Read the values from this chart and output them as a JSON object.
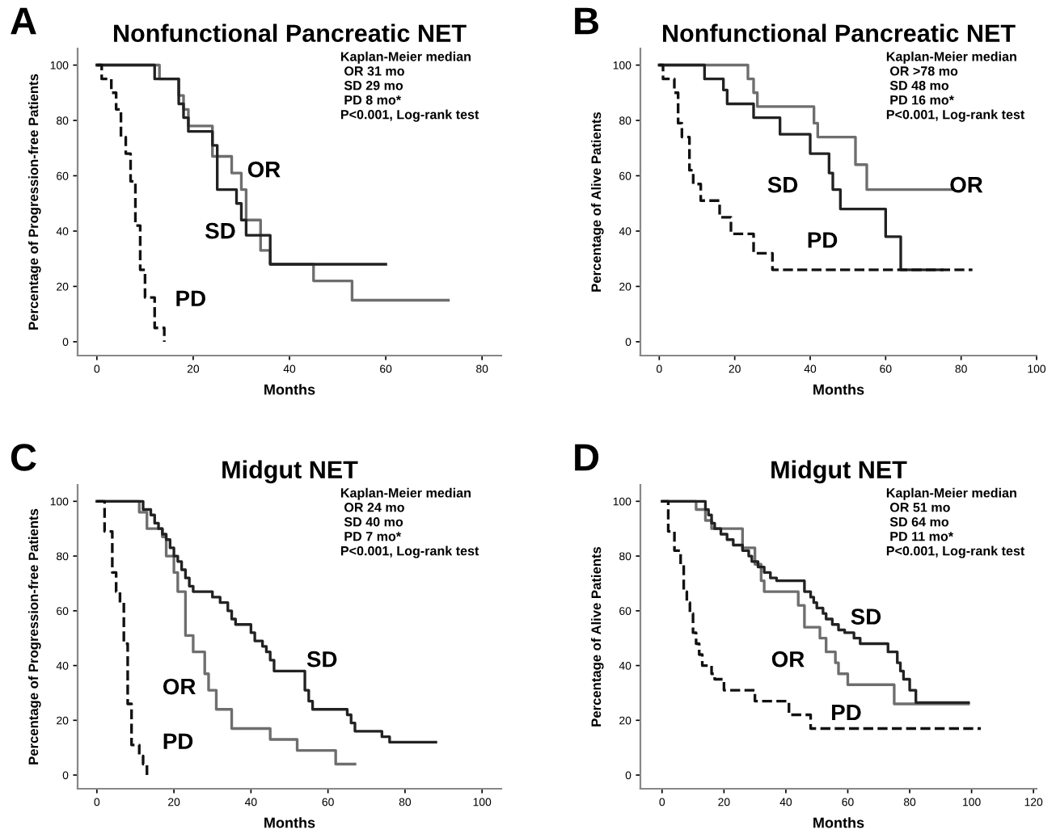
{
  "chart_data": [
    {
      "type": "step",
      "title": "Nonfunctional Pancreatic NET",
      "xlabel": "Months",
      "ylabel": "Percentage of Progression-free Patients",
      "xlim": [
        -4,
        84
      ],
      "xticks": [
        0,
        20,
        40,
        60,
        80
      ],
      "ylim": [
        -5,
        106
      ],
      "yticks": [
        0,
        20,
        40,
        60,
        80,
        100
      ],
      "grid": false,
      "legend": false,
      "annotations": [
        "A",
        "Kaplan-Meier median\n OR 31 mo\n SD 29 mo\n PD 8 mo*\nP<0.001, Log-rank test"
      ],
      "series": [
        {
          "name": "OR",
          "color": "#6e6e6e",
          "line_style": "solid",
          "x": [
            0,
            13,
            17,
            18,
            19,
            24,
            28,
            30,
            31,
            34,
            36,
            45,
            53,
            73
          ],
          "values": [
            100,
            95,
            89,
            84,
            78,
            67,
            61,
            55,
            44,
            33,
            28,
            22,
            15,
            15
          ]
        },
        {
          "name": "SD",
          "color": "#222222",
          "line_style": "solid",
          "x": [
            0,
            12,
            17,
            18,
            19,
            24,
            25,
            29,
            30,
            31,
            36,
            60
          ],
          "values": [
            100,
            95,
            86,
            81,
            76,
            71,
            55,
            50,
            44,
            38.5,
            28,
            28
          ]
        },
        {
          "name": "PD",
          "color": "#111111",
          "line_style": "dashed",
          "x": [
            0,
            1,
            3,
            4,
            5,
            6,
            7,
            8,
            9,
            10,
            12,
            14
          ],
          "values": [
            100,
            95,
            90,
            84,
            74,
            68,
            58,
            42,
            26,
            16,
            5,
            0
          ]
        }
      ]
    },
    {
      "type": "step",
      "title": "Nonfunctional Pancreatic NET",
      "xlabel": "Months",
      "ylabel": "Percentage of Alive Patients",
      "xlim": [
        -5,
        100
      ],
      "xticks": [
        0,
        20,
        40,
        60,
        80,
        100
      ],
      "ylim": [
        -5,
        106
      ],
      "yticks": [
        0,
        20,
        40,
        60,
        80,
        100
      ],
      "grid": false,
      "legend": false,
      "annotations": [
        "B",
        "Kaplan-Meier median\n OR >78 mo\n SD 48 mo\n PD 16 mo*\nP<0.001, Log-rank test"
      ],
      "series": [
        {
          "name": "OR",
          "color": "#6e6e6e",
          "line_style": "solid",
          "x": [
            0,
            23.5,
            25,
            26,
            41,
            42,
            52,
            55,
            78
          ],
          "values": [
            100,
            95,
            90,
            85,
            79,
            74,
            64,
            55,
            55
          ]
        },
        {
          "name": "SD",
          "color": "#222222",
          "line_style": "solid",
          "x": [
            0,
            12,
            17,
            18,
            25,
            32,
            40,
            45,
            46,
            48,
            60,
            64,
            75
          ],
          "values": [
            100,
            95,
            91,
            86,
            81,
            75,
            68,
            61,
            55,
            48,
            38,
            26,
            26
          ]
        },
        {
          "name": "PD",
          "color": "#111111",
          "line_style": "dashed",
          "x": [
            0,
            1,
            4,
            5,
            6,
            8,
            9,
            11,
            16,
            19,
            25,
            30,
            83
          ],
          "values": [
            100,
            95,
            90,
            79,
            74,
            62,
            57,
            51,
            45,
            39,
            32,
            26,
            26
          ]
        }
      ]
    },
    {
      "type": "step",
      "title": "Midgut NET",
      "xlabel": "Months",
      "ylabel": "Percentage of Progression-free Patients",
      "xlim": [
        -5,
        105
      ],
      "xticks": [
        0,
        20,
        40,
        60,
        80,
        100
      ],
      "ylim": [
        -5,
        106
      ],
      "yticks": [
        0,
        20,
        40,
        60,
        80,
        100
      ],
      "grid": false,
      "legend": false,
      "annotations": [
        "C",
        "Kaplan-Meier median\n OR 24 mo\n SD 40 mo\n PD 7 mo*\nP<0.001, Log-rank test"
      ],
      "series": [
        {
          "name": "OR",
          "color": "#6e6e6e",
          "line_style": "solid",
          "x": [
            0,
            11,
            13,
            17,
            18,
            20,
            21,
            23,
            25,
            28,
            29,
            31,
            35,
            45,
            52,
            62,
            67
          ],
          "values": [
            100,
            96,
            90,
            87,
            80,
            74,
            67,
            51,
            45,
            37,
            31,
            24,
            17,
            13,
            9,
            4,
            4
          ]
        },
        {
          "name": "SD",
          "color": "#222222",
          "line_style": "solid",
          "x": [
            0,
            12,
            14,
            15,
            16,
            17,
            18,
            19,
            20,
            21,
            22,
            23,
            24,
            25,
            30,
            32,
            34,
            35,
            36,
            40,
            41,
            43,
            44,
            45,
            46,
            54,
            55,
            56,
            65,
            66,
            67,
            74,
            76,
            88
          ],
          "values": [
            100,
            97,
            95,
            92,
            90,
            88,
            86,
            83,
            80,
            78,
            75,
            72,
            69,
            67,
            65,
            63,
            60,
            57,
            55,
            52,
            49,
            47,
            45,
            42,
            38,
            31,
            27,
            24,
            22,
            19,
            16,
            14,
            12,
            12
          ]
        },
        {
          "name": "PD",
          "color": "#111111",
          "line_style": "dashed",
          "x": [
            0,
            2,
            4,
            5,
            6,
            7,
            8,
            9,
            11,
            12,
            13
          ],
          "values": [
            100,
            89,
            74,
            67,
            63,
            48,
            26,
            11,
            7,
            4,
            0
          ]
        }
      ]
    },
    {
      "type": "step",
      "title": "Midgut NET",
      "xlabel": "Months",
      "ylabel": "Percentage of Alive Patients",
      "xlim": [
        -7,
        121
      ],
      "xticks": [
        0,
        20,
        40,
        60,
        80,
        100,
        120
      ],
      "ylim": [
        -5,
        106
      ],
      "yticks": [
        0,
        20,
        40,
        60,
        80,
        100
      ],
      "grid": false,
      "legend": false,
      "annotations": [
        "D",
        "Kaplan-Meier median\n OR 51 mo\n SD 64 mo\n PD 11 mo*\nP<0.001, Log-rank test"
      ],
      "series": [
        {
          "name": "OR",
          "color": "#6e6e6e",
          "line_style": "solid",
          "x": [
            0,
            11,
            14,
            16,
            26,
            30,
            32,
            33,
            44,
            46,
            51,
            53,
            56,
            57,
            60,
            75,
            99
          ],
          "values": [
            100,
            97,
            93,
            90,
            83,
            77,
            71,
            67,
            62,
            54,
            50,
            45,
            41,
            37,
            33,
            26,
            26
          ]
        },
        {
          "name": "SD",
          "color": "#222222",
          "line_style": "solid",
          "x": [
            0,
            14,
            15,
            16,
            17,
            19,
            21,
            23,
            26,
            28,
            29,
            31,
            33,
            35,
            37,
            46,
            48,
            49,
            50,
            52,
            53,
            55,
            57,
            59,
            62,
            64,
            73,
            76,
            77,
            78,
            80,
            82,
            99
          ],
          "values": [
            100,
            97,
            95,
            92,
            90,
            88,
            86,
            84,
            82,
            80,
            78,
            76,
            74,
            72,
            71,
            67,
            65,
            63,
            61,
            59,
            57,
            55,
            53,
            52,
            50,
            48,
            45,
            41,
            38,
            35,
            31,
            26.5,
            26.5
          ]
        },
        {
          "name": "PD",
          "color": "#111111",
          "line_style": "dashed",
          "x": [
            0,
            2,
            4,
            6,
            7,
            8,
            9,
            10,
            11,
            12,
            13,
            16,
            17,
            20,
            30,
            41,
            48,
            103
          ],
          "values": [
            100,
            89,
            82,
            77,
            67,
            63,
            59,
            52,
            48,
            44,
            40,
            37,
            35,
            31,
            27,
            22,
            17,
            17
          ]
        }
      ]
    }
  ]
}
